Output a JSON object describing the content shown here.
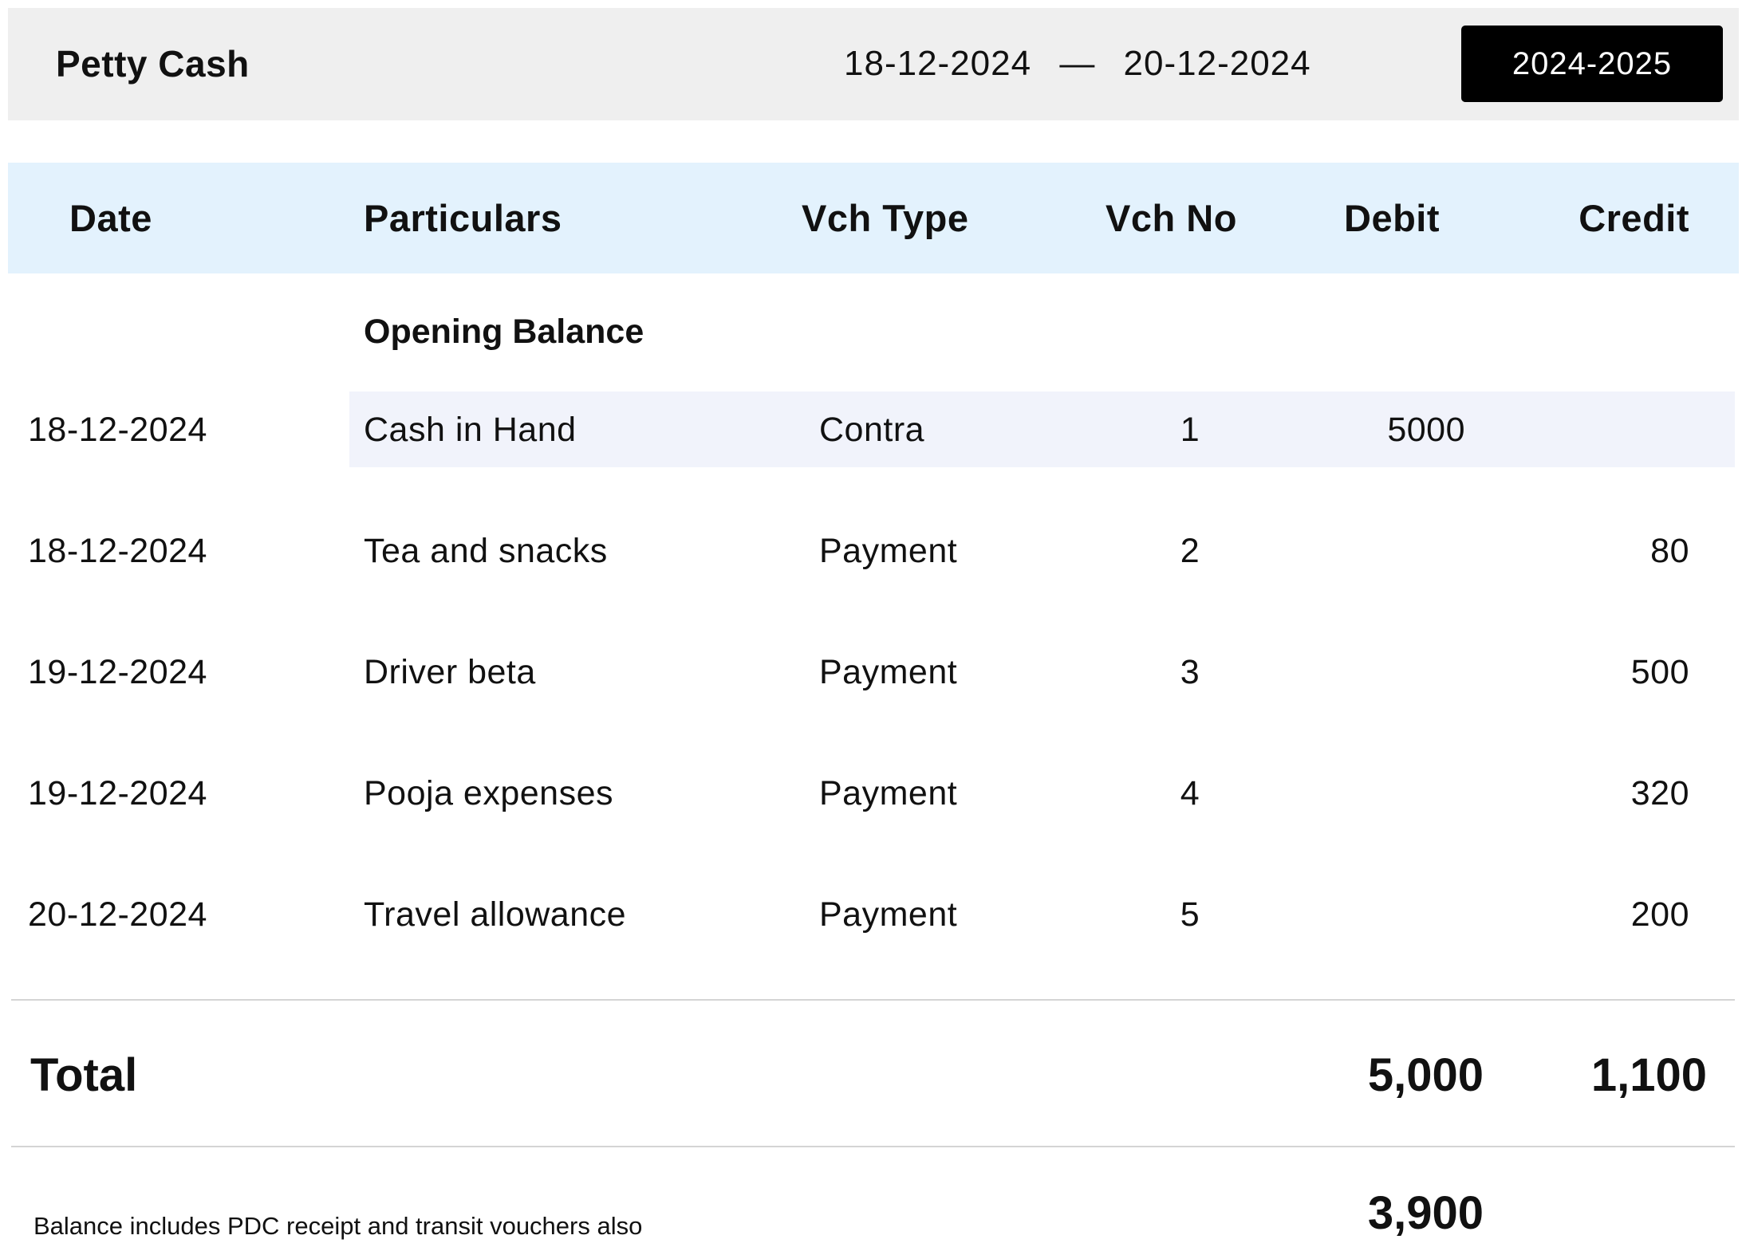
{
  "header": {
    "title": "Petty Cash",
    "date_from": "18-12-2024",
    "date_separator": "—",
    "date_to": "20-12-2024",
    "financial_year": "2024-2025"
  },
  "table": {
    "columns": [
      "Date",
      "Particulars",
      "Vch Type",
      "Vch No",
      "Debit",
      "Credit"
    ],
    "opening_balance_label": "Opening Balance",
    "rows": [
      {
        "date": "18-12-2024",
        "particulars": "Cash in Hand",
        "vch_type": "Contra",
        "vch_no": "1",
        "debit": "5000",
        "credit": ""
      },
      {
        "date": "18-12-2024",
        "particulars": "Tea and snacks",
        "vch_type": "Payment",
        "vch_no": "2",
        "debit": "",
        "credit": "80"
      },
      {
        "date": "19-12-2024",
        "particulars": "Driver beta",
        "vch_type": "Payment",
        "vch_no": "3",
        "debit": "",
        "credit": "500"
      },
      {
        "date": "19-12-2024",
        "particulars": "Pooja expenses",
        "vch_type": "Payment",
        "vch_no": "4",
        "debit": "",
        "credit": "320"
      },
      {
        "date": "20-12-2024",
        "particulars": "Travel allowance",
        "vch_type": "Payment",
        "vch_no": "5",
        "debit": "",
        "credit": "200"
      }
    ],
    "highlight_color": "#f1f3fb",
    "header_bg": "#e3f2fd"
  },
  "totals": {
    "label": "Total",
    "debit": "5,000",
    "credit": "1,100",
    "balance": "3,900",
    "note": "Balance includes PDC receipt and transit vouchers also"
  }
}
